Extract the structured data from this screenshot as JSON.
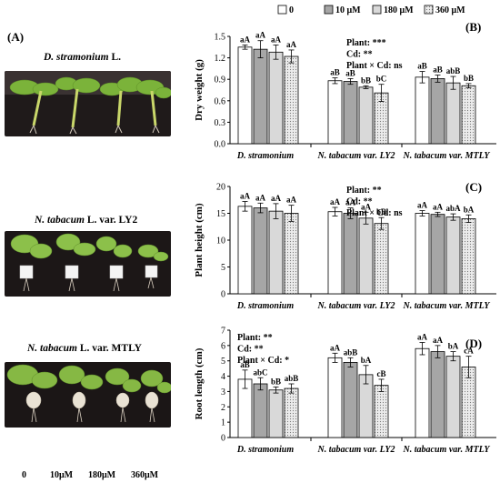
{
  "figure_label_a": "(A)",
  "photos": [
    {
      "caption_italic": "D. stramonium",
      "caption_suffix": " L."
    },
    {
      "caption_italic": "N. tabacum",
      "caption_suffix": " L. var. LY2"
    },
    {
      "caption_italic": "N. tabacum",
      "caption_suffix": " L. var. MTLY"
    }
  ],
  "concentration_labels": [
    "0",
    "10μM",
    "180μM",
    "360μM"
  ],
  "legend": [
    "0",
    "10 μM",
    "180 μM",
    "360 μM"
  ],
  "colors": {
    "s0": "#ffffff",
    "s1": "#a6a6a6",
    "s2": "#d9d9d9",
    "s3": "#ebebeb"
  },
  "chart_data": [
    {
      "type": "bar",
      "panel": "(B)",
      "categories": [
        "D. stramonium",
        "N. tabacum var. LY2",
        "N. tabacum var. MTLY"
      ],
      "ylabel": "Dry weight (g)",
      "ylim": [
        0,
        1.5
      ],
      "yticks": [
        "0.0",
        "0.3",
        "0.6",
        "0.9",
        "1.2",
        "1.5"
      ],
      "series": [
        {
          "name": "0",
          "values": [
            1.35,
            0.88,
            0.93
          ],
          "errors": [
            0.03,
            0.04,
            0.08
          ]
        },
        {
          "name": "10 μM",
          "values": [
            1.32,
            0.87,
            0.91
          ],
          "errors": [
            0.12,
            0.04,
            0.05
          ]
        },
        {
          "name": "180 μM",
          "values": [
            1.28,
            0.79,
            0.85
          ],
          "errors": [
            0.1,
            0.02,
            0.09
          ]
        },
        {
          "name": "360 μM",
          "values": [
            1.22,
            0.71,
            0.81
          ],
          "errors": [
            0.09,
            0.12,
            0.03
          ]
        }
      ],
      "bar_labels": [
        [
          "aA",
          "aA",
          "aA",
          "aA"
        ],
        [
          "aB",
          "aB",
          "bB",
          "bC"
        ],
        [
          "aB",
          "aB",
          "abB",
          "bB"
        ]
      ],
      "stats": [
        "Plant: ***",
        "Cd: **",
        "Plant × Cd: ns"
      ],
      "stats_position": "top-center"
    },
    {
      "type": "bar",
      "panel": "(C)",
      "categories": [
        "D. stramonium",
        "N. tabacum var. LY2",
        "N. tabacum var. MTLY"
      ],
      "ylabel": "Plant height (cm)",
      "ylim": [
        0,
        20
      ],
      "yticks": [
        "0",
        "5",
        "10",
        "15",
        "20"
      ],
      "series": [
        {
          "name": "0",
          "values": [
            16.3,
            15.3,
            15.0
          ],
          "errors": [
            0.9,
            0.8,
            0.5
          ]
        },
        {
          "name": "10 μM",
          "values": [
            16.0,
            15.0,
            14.8
          ],
          "errors": [
            0.9,
            1.0,
            0.4
          ]
        },
        {
          "name": "180 μM",
          "values": [
            15.4,
            14.1,
            14.3
          ],
          "errors": [
            1.4,
            1.1,
            0.6
          ]
        },
        {
          "name": "360 μM",
          "values": [
            15.0,
            13.1,
            14.0
          ],
          "errors": [
            1.5,
            1.1,
            0.7
          ]
        }
      ],
      "bar_labels": [
        [
          "aA",
          "aA",
          "aA",
          "aA"
        ],
        [
          "aA",
          "aA",
          "aA",
          "bB"
        ],
        [
          "aA",
          "aA",
          "abA",
          "bA"
        ]
      ],
      "stats": [
        "Plant: **",
        "Cd: **",
        "Plant × Cd: ns"
      ],
      "stats_position": "top-center"
    },
    {
      "type": "bar",
      "panel": "(D)",
      "categories": [
        "D. stramonium",
        "N. tabacum var. LY2",
        "N. tabacum var. MTLY"
      ],
      "ylabel": "Root length (cm)",
      "ylim": [
        0,
        7
      ],
      "yticks": [
        "0",
        "1",
        "2",
        "3",
        "4",
        "5",
        "6",
        "7"
      ],
      "series": [
        {
          "name": "0",
          "values": [
            3.8,
            5.2,
            5.8
          ],
          "errors": [
            0.6,
            0.3,
            0.4
          ]
        },
        {
          "name": "10 μM",
          "values": [
            3.5,
            4.9,
            5.6
          ],
          "errors": [
            0.4,
            0.3,
            0.4
          ]
        },
        {
          "name": "180 μM",
          "values": [
            3.1,
            4.1,
            5.3
          ],
          "errors": [
            0.2,
            0.6,
            0.3
          ]
        },
        {
          "name": "360 μM",
          "values": [
            3.2,
            3.4,
            4.6
          ],
          "errors": [
            0.3,
            0.4,
            0.7
          ]
        }
      ],
      "bar_labels": [
        [
          "aB",
          "abC",
          "bB",
          "abB"
        ],
        [
          "aA",
          "abB",
          "bA",
          "cB"
        ],
        [
          "aA",
          "aA",
          "bA",
          "cA"
        ]
      ],
      "stats": [
        "Plant: **",
        "Cd: **",
        "Plant × Cd: *"
      ],
      "stats_position": "top-left"
    }
  ]
}
